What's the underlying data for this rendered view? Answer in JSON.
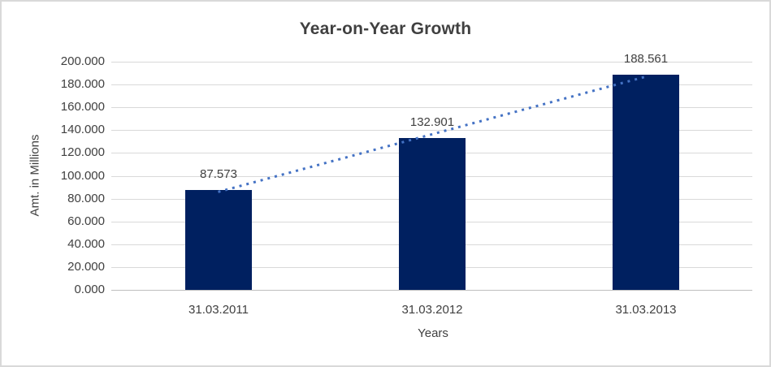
{
  "chart_data": {
    "type": "bar",
    "title": "Year-on-Year Growth",
    "xlabel": "Years",
    "ylabel": "Amt. in Millions",
    "categories": [
      "31.03.2011",
      "31.03.2012",
      "31.03.2013"
    ],
    "values": [
      87.573,
      132.901,
      188.561
    ],
    "value_labels": [
      "87.573",
      "132.901",
      "188.561"
    ],
    "ylim": [
      0,
      200
    ],
    "ytick_step": 20,
    "ytick_labels": [
      "0.000",
      "20.000",
      "40.000",
      "60.000",
      "80.000",
      "100.000",
      "120.000",
      "140.000",
      "160.000",
      "180.000",
      "200.000"
    ],
    "grid": true,
    "legend": "none",
    "trendline": {
      "type": "linear",
      "style": "dotted"
    },
    "colors": {
      "bar": "#002060",
      "trendline": "#4472c4",
      "gridline": "#d9d9d9",
      "axis_line": "#bfbfbf",
      "text": "#404040",
      "border": "#d9d9d9",
      "background": "#ffffff"
    }
  }
}
